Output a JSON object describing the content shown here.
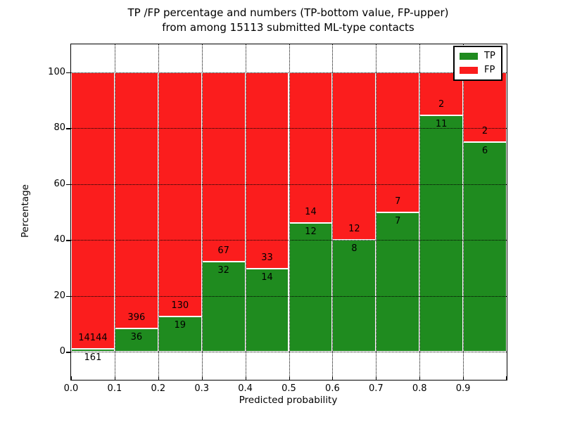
{
  "title": {
    "line1": "TP /FP percentage and numbers (TP-bottom value, FP-upper)",
    "line2": "from among 15113 submitted ML-type contacts"
  },
  "axes": {
    "xlabel": "Predicted probability",
    "ylabel": "Percentage",
    "x_ticks": [
      "0.0",
      "0.1",
      "0.2",
      "0.3",
      "0.4",
      "0.5",
      "0.6",
      "0.7",
      "0.8",
      "0.9"
    ],
    "y_ticks": [
      "0",
      "20",
      "40",
      "60",
      "80",
      "100"
    ]
  },
  "legend": [
    {
      "label": "TP",
      "color": "#1f8b1f"
    },
    {
      "label": "FP",
      "color": "#fb1d1d"
    }
  ],
  "chart_data": {
    "type": "bar",
    "stacked": true,
    "normalized_to_percent": true,
    "title": "TP /FP percentage and numbers (TP-bottom value, FP-upper) from among 15113 submitted ML-type contacts",
    "xlabel": "Predicted probability",
    "ylabel": "Percentage",
    "xlim": [
      0.0,
      1.0
    ],
    "ylim": [
      -10,
      110
    ],
    "bin_width": 0.1,
    "grid": true,
    "legend_position": "upper right",
    "categories": [
      "0.0-0.1",
      "0.1-0.2",
      "0.2-0.3",
      "0.3-0.4",
      "0.4-0.5",
      "0.5-0.6",
      "0.6-0.7",
      "0.7-0.8",
      "0.8-0.9",
      "0.9-1.0"
    ],
    "series": [
      {
        "name": "TP",
        "counts": [
          161,
          36,
          19,
          32,
          14,
          12,
          8,
          7,
          11,
          6
        ]
      },
      {
        "name": "FP",
        "counts": [
          14144,
          396,
          130,
          67,
          33,
          14,
          12,
          7,
          2,
          2
        ]
      }
    ],
    "tp_percent": [
      1.13,
      8.33,
      12.75,
      32.32,
      29.79,
      46.15,
      40.0,
      50.0,
      84.62,
      75.0
    ],
    "total_submitted": 15113
  }
}
